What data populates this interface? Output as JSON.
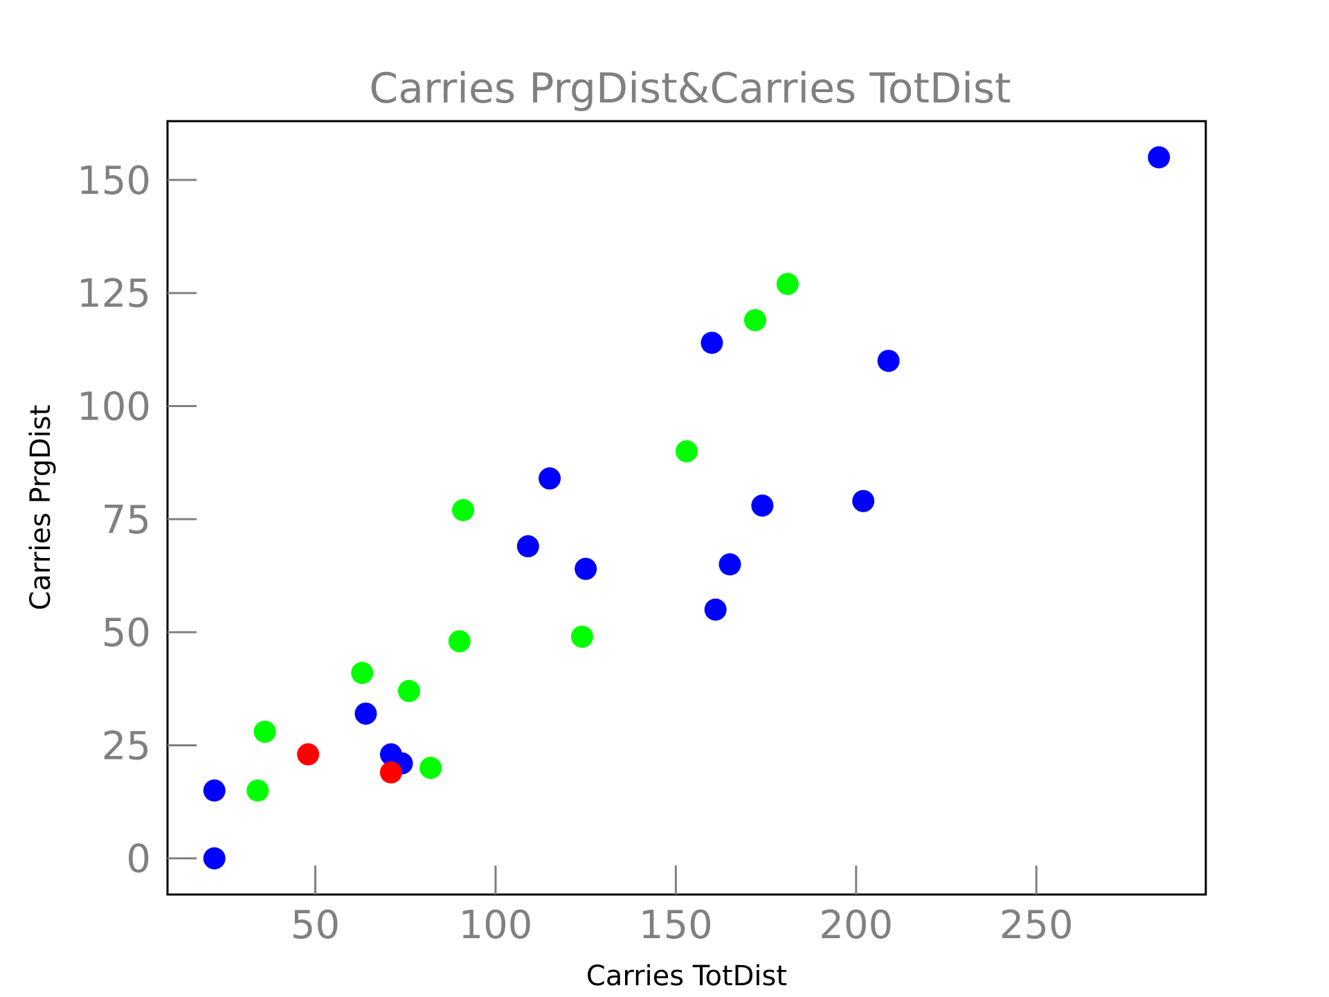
{
  "chart_data": {
    "type": "scatter",
    "title": "Carries PrgDist&Carries TotDist",
    "xlabel": "Carries TotDist",
    "ylabel": "Carries PrgDist",
    "xlim": [
      9,
      297
    ],
    "ylim": [
      -8,
      163
    ],
    "x_ticks": [
      50,
      100,
      150,
      200,
      250
    ],
    "y_ticks": [
      0,
      25,
      50,
      75,
      100,
      125,
      150
    ],
    "grid": false,
    "legend": "none",
    "points": [
      {
        "x": 22,
        "y": 15,
        "color": "#0000ff"
      },
      {
        "x": 22,
        "y": 0,
        "color": "#0000ff"
      },
      {
        "x": 64,
        "y": 32,
        "color": "#0000ff"
      },
      {
        "x": 71,
        "y": 23,
        "color": "#0000ff"
      },
      {
        "x": 74,
        "y": 21,
        "color": "#0000ff"
      },
      {
        "x": 109,
        "y": 69,
        "color": "#0000ff"
      },
      {
        "x": 115,
        "y": 84,
        "color": "#0000ff"
      },
      {
        "x": 125,
        "y": 64,
        "color": "#0000ff"
      },
      {
        "x": 160,
        "y": 114,
        "color": "#0000ff"
      },
      {
        "x": 161,
        "y": 55,
        "color": "#0000ff"
      },
      {
        "x": 165,
        "y": 65,
        "color": "#0000ff"
      },
      {
        "x": 174,
        "y": 78,
        "color": "#0000ff"
      },
      {
        "x": 202,
        "y": 79,
        "color": "#0000ff"
      },
      {
        "x": 209,
        "y": 110,
        "color": "#0000ff"
      },
      {
        "x": 284,
        "y": 155,
        "color": "#0000ff"
      },
      {
        "x": 34,
        "y": 15,
        "color": "#00ff00"
      },
      {
        "x": 36,
        "y": 28,
        "color": "#00ff00"
      },
      {
        "x": 63,
        "y": 41,
        "color": "#00ff00"
      },
      {
        "x": 76,
        "y": 37,
        "color": "#00ff00"
      },
      {
        "x": 82,
        "y": 20,
        "color": "#00ff00"
      },
      {
        "x": 90,
        "y": 48,
        "color": "#00ff00"
      },
      {
        "x": 91,
        "y": 77,
        "color": "#00ff00"
      },
      {
        "x": 124,
        "y": 49,
        "color": "#00ff00"
      },
      {
        "x": 153,
        "y": 90,
        "color": "#00ff00"
      },
      {
        "x": 172,
        "y": 119,
        "color": "#00ff00"
      },
      {
        "x": 181,
        "y": 127,
        "color": "#00ff00"
      },
      {
        "x": 48,
        "y": 23,
        "color": "#ff0000"
      },
      {
        "x": 71,
        "y": 19,
        "color": "#ff0000"
      }
    ]
  }
}
